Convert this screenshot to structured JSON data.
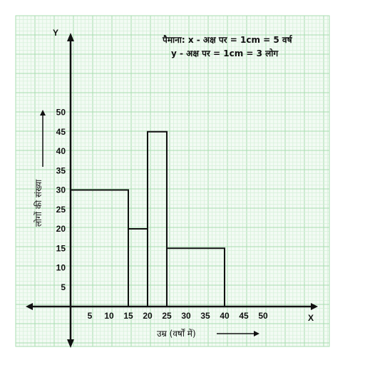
{
  "chart_data": {
    "type": "bar",
    "bins": [
      {
        "from": 0,
        "to": 15,
        "value": 30
      },
      {
        "from": 15,
        "to": 20,
        "value": 20
      },
      {
        "from": 20,
        "to": 25,
        "value": 45
      },
      {
        "from": 25,
        "to": 40,
        "value": 15
      }
    ],
    "x_ticks": [
      "5",
      "10",
      "15",
      "20",
      "25",
      "30",
      "35",
      "40",
      "45",
      "50"
    ],
    "y_ticks": [
      "5",
      "10",
      "15",
      "20",
      "25",
      "30",
      "35",
      "40",
      "45",
      "50"
    ],
    "xlim": [
      0,
      50
    ],
    "ylim": [
      0,
      50
    ],
    "x_axis_name": "X",
    "y_axis_name": "Y",
    "xlabel": "उम्र (वर्षों में)",
    "ylabel": "लोगों की संख्या",
    "scale_line1": "पैमाना: x - अक्ष पर = 1cm = 5 वर्ष",
    "scale_line2": "y - अक्ष पर = 1cm = 3 लोग",
    "grid": true,
    "colors": {
      "grid_minor": "#d4efd8",
      "grid_major": "#a8dcb0",
      "axis": "#111111"
    }
  }
}
